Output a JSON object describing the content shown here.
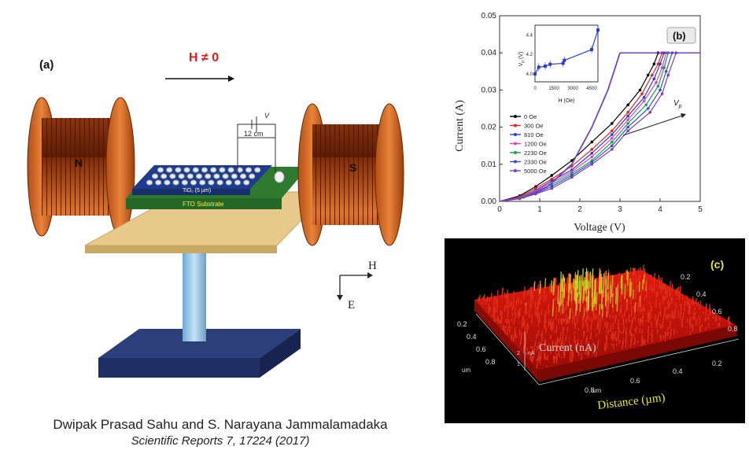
{
  "panel_a": {
    "label": "(a)",
    "field_label": "H ≠ 0",
    "pole_n": "N",
    "pole_s": "S",
    "gap_label": "12 cm",
    "voltage_label": "V",
    "tio2_label": "TiO₂ (5 µm)",
    "substrate_label": "FTO Substrate",
    "axis_h": "H",
    "axis_e": "E"
  },
  "panel_b": {
    "label": "(b)",
    "vp_label": "V",
    "vp_sub": "p",
    "chart_data": {
      "type": "line",
      "xlabel": "Voltage (V)",
      "ylabel": "Current (A)",
      "xlim": [
        0,
        5
      ],
      "ylim": [
        0,
        0.05
      ],
      "xticks": [
        "0",
        "1",
        "2",
        "3",
        "4",
        "5"
      ],
      "yticks": [
        "0.00",
        "0.01",
        "0.02",
        "0.03",
        "0.04",
        "0.05"
      ],
      "series": [
        {
          "name": "0 Oe",
          "color": "#000000",
          "x": [
            0,
            0.5,
            0.9,
            1.3,
            1.8,
            2.3,
            2.8,
            3.2,
            3.5,
            3.7,
            3.85,
            3.95
          ],
          "y": [
            0,
            0.0015,
            0.004,
            0.007,
            0.011,
            0.016,
            0.021,
            0.026,
            0.03,
            0.034,
            0.037,
            0.04
          ]
        },
        {
          "name": "300 Oe",
          "color": "#e8231e",
          "x": [
            0,
            0.5,
            0.9,
            1.3,
            1.8,
            2.3,
            2.8,
            3.2,
            3.55,
            3.8,
            3.95,
            4.05
          ],
          "y": [
            0,
            0.0012,
            0.0035,
            0.006,
            0.0095,
            0.014,
            0.019,
            0.024,
            0.029,
            0.034,
            0.037,
            0.04
          ]
        },
        {
          "name": "810 Oe",
          "color": "#2a3bd6",
          "x": [
            0,
            0.5,
            0.9,
            1.3,
            1.8,
            2.3,
            2.8,
            3.2,
            3.6,
            3.85,
            4.0,
            4.1
          ],
          "y": [
            0,
            0.001,
            0.003,
            0.0055,
            0.0085,
            0.013,
            0.018,
            0.023,
            0.028,
            0.033,
            0.037,
            0.04
          ]
        },
        {
          "name": "1200 Oe",
          "color": "#e040c8",
          "x": [
            0,
            0.5,
            0.9,
            1.3,
            1.8,
            2.3,
            2.8,
            3.2,
            3.6,
            3.9,
            4.05,
            4.15
          ],
          "y": [
            0,
            0.001,
            0.0028,
            0.005,
            0.008,
            0.012,
            0.017,
            0.022,
            0.027,
            0.032,
            0.036,
            0.04
          ]
        },
        {
          "name": "2230 Oe",
          "color": "#13a04a",
          "x": [
            0,
            0.5,
            0.9,
            1.3,
            1.8,
            2.3,
            2.8,
            3.2,
            3.65,
            3.95,
            4.1,
            4.2
          ],
          "y": [
            0,
            0.0009,
            0.0025,
            0.0045,
            0.0075,
            0.011,
            0.016,
            0.021,
            0.026,
            0.031,
            0.036,
            0.04
          ]
        },
        {
          "name": "2330 Oe",
          "color": "#3a4bd0",
          "x": [
            0,
            0.5,
            0.9,
            1.3,
            1.8,
            2.3,
            2.8,
            3.2,
            3.7,
            4.0,
            4.15,
            4.3
          ],
          "y": [
            0,
            0.0008,
            0.0022,
            0.004,
            0.007,
            0.0105,
            0.015,
            0.02,
            0.025,
            0.03,
            0.035,
            0.04
          ]
        },
        {
          "name": "5000 Oe",
          "color": "#7a3fc4",
          "x": [
            0,
            0.5,
            0.9,
            1.3,
            1.8,
            2.3,
            2.8,
            3.2,
            3.75,
            4.05,
            4.2,
            4.4
          ],
          "y": [
            0,
            0.0007,
            0.002,
            0.0035,
            0.0065,
            0.01,
            0.014,
            0.019,
            0.024,
            0.029,
            0.034,
            0.04
          ]
        }
      ],
      "inset": {
        "xlabel": "H (Oe)",
        "ylabel": "V",
        "ylabel_sub": "p",
        "ylabel_unit": " (V)",
        "xticks": [
          "0",
          "1500",
          "3000",
          "4500"
        ],
        "yticks": [
          "4.0",
          "4.2",
          "4.4"
        ],
        "xlim": [
          0,
          5000
        ],
        "ylim": [
          3.92,
          4.5
        ],
        "x": [
          0,
          300,
          810,
          1200,
          2230,
          2330,
          4500,
          5000
        ],
        "y": [
          4.0,
          4.07,
          4.08,
          4.1,
          4.11,
          4.14,
          4.25,
          4.45
        ]
      }
    }
  },
  "panel_c": {
    "label": "(c)",
    "zlabel": "Current (nA)",
    "xlabel": "Distance (µm)",
    "unit_um": "um",
    "unit_nA": "nA",
    "ticks_right": [
      "0.2",
      "0.4",
      "0.6",
      "0.8"
    ],
    "ticks_left": [
      "0.2",
      "0.4",
      "0.6",
      "0.8"
    ],
    "ticks_front": [
      "0.2",
      "0.4",
      "0.6",
      "0.8"
    ],
    "ticks_z": [
      "1",
      "2"
    ]
  },
  "citation": {
    "authors": "Dwipak Prasad Sahu and S. Narayana Jammalamadaka",
    "journal": "Scientific Reports 7, 17224 (2017)"
  }
}
